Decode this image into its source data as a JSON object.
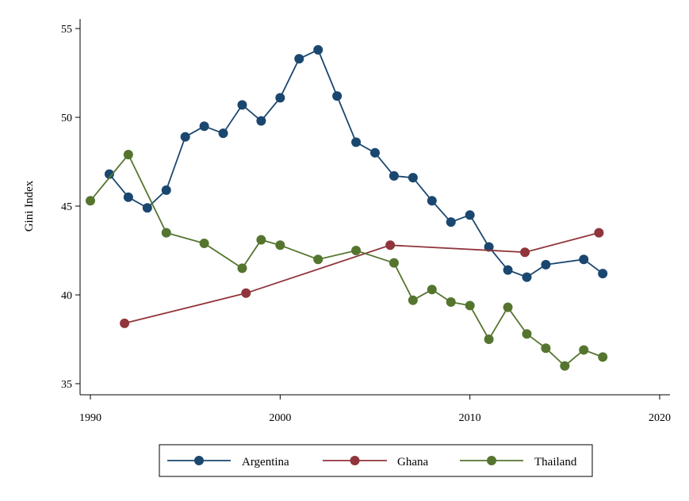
{
  "chart_data": {
    "type": "line",
    "title": "",
    "xlabel": "",
    "ylabel": "Gini Index",
    "xlim": [
      1990,
      2020
    ],
    "ylim": [
      35,
      56
    ],
    "x_ticks": [
      1990,
      2000,
      2010,
      2020
    ],
    "y_ticks": [
      35,
      40,
      45,
      50,
      55
    ],
    "grid": false,
    "legend_position": "bottom",
    "series": [
      {
        "name": "Argentina",
        "color": "#1a476f",
        "points": [
          [
            1991,
            46.8
          ],
          [
            1992,
            45.5
          ],
          [
            1993,
            44.9
          ],
          [
            1994,
            45.9
          ],
          [
            1995,
            48.9
          ],
          [
            1996,
            49.5
          ],
          [
            1997,
            49.1
          ],
          [
            1998,
            50.7
          ],
          [
            1999,
            49.8
          ],
          [
            2000,
            51.1
          ],
          [
            2001,
            53.3
          ],
          [
            2002,
            53.8
          ],
          [
            2003,
            51.2
          ],
          [
            2004,
            48.6
          ],
          [
            2005,
            48.0
          ],
          [
            2006,
            46.7
          ],
          [
            2007,
            46.6
          ],
          [
            2008,
            45.3
          ],
          [
            2009,
            44.1
          ],
          [
            2010,
            44.5
          ],
          [
            2011,
            42.7
          ],
          [
            2012,
            41.4
          ],
          [
            2013,
            41.0
          ],
          [
            2014,
            41.7
          ],
          [
            2016,
            42.0
          ],
          [
            2017,
            41.2
          ]
        ]
      },
      {
        "name": "Ghana",
        "color": "#90353b",
        "points": [
          [
            1991.8,
            38.4
          ],
          [
            1998.2,
            40.1
          ],
          [
            2005.8,
            42.8
          ],
          [
            2012.9,
            42.4
          ],
          [
            2016.8,
            43.5
          ]
        ]
      },
      {
        "name": "Thailand",
        "color": "#55752f",
        "points": [
          [
            1990,
            45.3
          ],
          [
            1992,
            47.9
          ],
          [
            1994,
            43.5
          ],
          [
            1996,
            42.9
          ],
          [
            1998,
            41.5
          ],
          [
            1999,
            43.1
          ],
          [
            2000,
            42.8
          ],
          [
            2002,
            42.0
          ],
          [
            2004,
            42.5
          ],
          [
            2006,
            41.8
          ],
          [
            2007,
            39.7
          ],
          [
            2008,
            40.3
          ],
          [
            2009,
            39.6
          ],
          [
            2010,
            39.4
          ],
          [
            2011,
            37.5
          ],
          [
            2012,
            39.3
          ],
          [
            2013,
            37.8
          ],
          [
            2014,
            37.0
          ],
          [
            2015,
            36.0
          ],
          [
            2016,
            36.9
          ],
          [
            2017,
            36.5
          ]
        ]
      }
    ]
  }
}
